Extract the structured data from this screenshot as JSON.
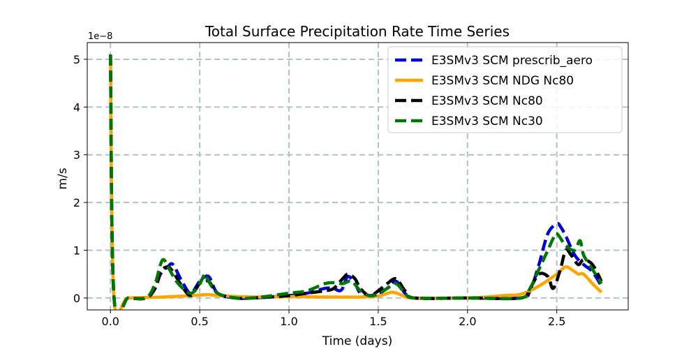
{
  "chart_data": {
    "type": "line",
    "title": "Total Surface Precipitation Rate Time Series",
    "xlabel": "Time (days)",
    "ylabel": "m/s",
    "y_scale_label": "1e−8",
    "xlim": [
      -0.13,
      2.9
    ],
    "ylim": [
      -0.25,
      5.35
    ],
    "x_ticks": [
      0.0,
      0.5,
      1.0,
      1.5,
      2.0,
      2.5
    ],
    "x_tick_labels": [
      "0.0",
      "0.5",
      "1.0",
      "1.5",
      "2.0",
      "2.5"
    ],
    "y_ticks": [
      0,
      1,
      2,
      3,
      4,
      5
    ],
    "y_tick_labels": [
      "0",
      "1",
      "2",
      "3",
      "4",
      "5"
    ],
    "grid": true,
    "legend_position": "upper right",
    "series": [
      {
        "name": "E3SMv3 SCM prescrib_aero",
        "color": "#0000dd",
        "style": "dashed",
        "x": [
          0,
          0.02,
          0.1,
          0.2,
          0.25,
          0.28,
          0.32,
          0.35,
          0.4,
          0.45,
          0.5,
          0.55,
          0.6,
          0.7,
          0.8,
          1.0,
          1.1,
          1.2,
          1.25,
          1.28,
          1.3,
          1.33,
          1.37,
          1.4,
          1.45,
          1.5,
          1.55,
          1.6,
          1.65,
          1.7,
          2.0,
          2.3,
          2.35,
          2.4,
          2.45,
          2.5,
          2.52,
          2.55,
          2.6,
          2.65,
          2.7,
          2.75
        ],
        "values": [
          5.1,
          0,
          0,
          0,
          0.2,
          0.5,
          0.65,
          0.7,
          0.35,
          0.1,
          0.35,
          0.45,
          0.1,
          0,
          0,
          0.05,
          0.1,
          0.2,
          0.2,
          0.15,
          0.2,
          0.45,
          0.3,
          0.1,
          0.05,
          0.1,
          0.2,
          0.35,
          0.1,
          0,
          0,
          0,
          0.15,
          0.7,
          1.35,
          1.55,
          1.5,
          1.3,
          0.9,
          0.7,
          0.55,
          0.25
        ]
      },
      {
        "name": "E3SMv3 SCM NDG Nc80",
        "color": "#ffa500",
        "style": "solid",
        "x": [
          0,
          0.02,
          0.1,
          0.3,
          0.4,
          0.5,
          0.55,
          0.6,
          0.8,
          1.0,
          1.2,
          1.4,
          1.5,
          1.58,
          1.65,
          1.7,
          2.0,
          2.2,
          2.3,
          2.4,
          2.5,
          2.55,
          2.6,
          2.62,
          2.65,
          2.7,
          2.75
        ],
        "values": [
          5.1,
          0,
          0,
          0.02,
          0.04,
          0.06,
          0.07,
          0.05,
          0.02,
          0.03,
          0.02,
          0.02,
          0.04,
          0.12,
          0.03,
          0,
          0,
          0.05,
          0.08,
          0.25,
          0.5,
          0.65,
          0.55,
          0.5,
          0.5,
          0.3,
          0.12
        ]
      },
      {
        "name": "E3SMv3 SCM Nc80",
        "color": "#000000",
        "style": "dashed",
        "x": [
          0,
          0.02,
          0.1,
          0.2,
          0.25,
          0.28,
          0.32,
          0.35,
          0.4,
          0.45,
          0.5,
          0.55,
          0.6,
          0.7,
          0.8,
          1.0,
          1.1,
          1.2,
          1.25,
          1.3,
          1.33,
          1.37,
          1.4,
          1.45,
          1.5,
          1.55,
          1.6,
          1.65,
          1.7,
          2.0,
          2.3,
          2.35,
          2.4,
          2.45,
          2.48,
          2.52,
          2.55,
          2.58,
          2.62,
          2.65,
          2.7,
          2.75
        ],
        "values": [
          5.1,
          0,
          0,
          0,
          0.2,
          0.55,
          0.65,
          0.55,
          0.25,
          0.05,
          0.3,
          0.35,
          0.1,
          0,
          0,
          0.05,
          0.1,
          0.15,
          0.2,
          0.4,
          0.5,
          0.4,
          0.2,
          0.05,
          0.15,
          0.3,
          0.4,
          0.15,
          0,
          0,
          0,
          0.2,
          0.5,
          0.45,
          0.2,
          0.6,
          1.0,
          0.9,
          0.7,
          0.8,
          0.7,
          0.35
        ]
      },
      {
        "name": "E3SMv3 SCM Nc30",
        "color": "#007700",
        "style": "dashed",
        "x": [
          0,
          0.02,
          0.1,
          0.2,
          0.25,
          0.28,
          0.3,
          0.33,
          0.38,
          0.45,
          0.5,
          0.53,
          0.55,
          0.6,
          0.7,
          0.8,
          1.0,
          1.1,
          1.2,
          1.25,
          1.3,
          1.35,
          1.4,
          1.45,
          1.5,
          1.55,
          1.6,
          1.65,
          1.7,
          2.0,
          2.3,
          2.35,
          2.4,
          2.45,
          2.48,
          2.5,
          2.55,
          2.6,
          2.63,
          2.65,
          2.7,
          2.75
        ],
        "values": [
          5.1,
          0,
          0,
          0,
          0.3,
          0.7,
          0.8,
          0.6,
          0.3,
          0.1,
          0.3,
          0.5,
          0.35,
          0.1,
          0,
          0,
          0.1,
          0.15,
          0.3,
          0.32,
          0.3,
          0.35,
          0.15,
          0.05,
          0.08,
          0.2,
          0.3,
          0.1,
          0,
          0,
          0,
          0.2,
          0.6,
          1.0,
          1.25,
          1.35,
          1.1,
          1.0,
          1.2,
          0.9,
          0.6,
          0.3
        ]
      }
    ]
  }
}
